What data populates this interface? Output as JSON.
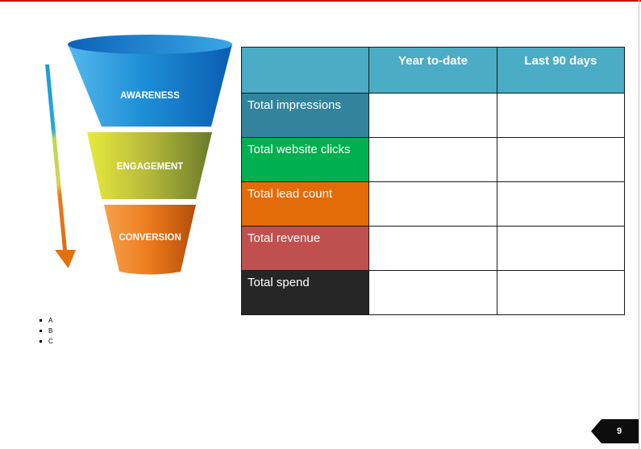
{
  "page_number": "9",
  "funnel": {
    "stages": [
      {
        "label": "AWARENESS",
        "color": "#1f8fd6"
      },
      {
        "label": "ENGAGEMENT",
        "color": "#c9cf3a"
      },
      {
        "label": "CONVERSION",
        "color": "#ec7a1d"
      }
    ]
  },
  "table": {
    "header_blank": "",
    "columns": [
      "Year to-date",
      "Last 90 days"
    ],
    "rows": [
      {
        "label": "Total impressions",
        "color": "#31849b",
        "values": [
          "",
          ""
        ]
      },
      {
        "label": "Total website clicks",
        "color": "#00b050",
        "values": [
          "",
          ""
        ]
      },
      {
        "label": "Total lead count",
        "color": "#e36c09",
        "values": [
          "",
          ""
        ]
      },
      {
        "label": "Total revenue",
        "color": "#c0504d",
        "values": [
          "",
          ""
        ]
      },
      {
        "label": "Total spend",
        "color": "#262626",
        "values": [
          "",
          ""
        ]
      }
    ]
  },
  "bullets": [
    "A",
    "B",
    "C"
  ],
  "colors": {
    "accent_red": "#d70000",
    "header_blue": "#4bacc6"
  }
}
